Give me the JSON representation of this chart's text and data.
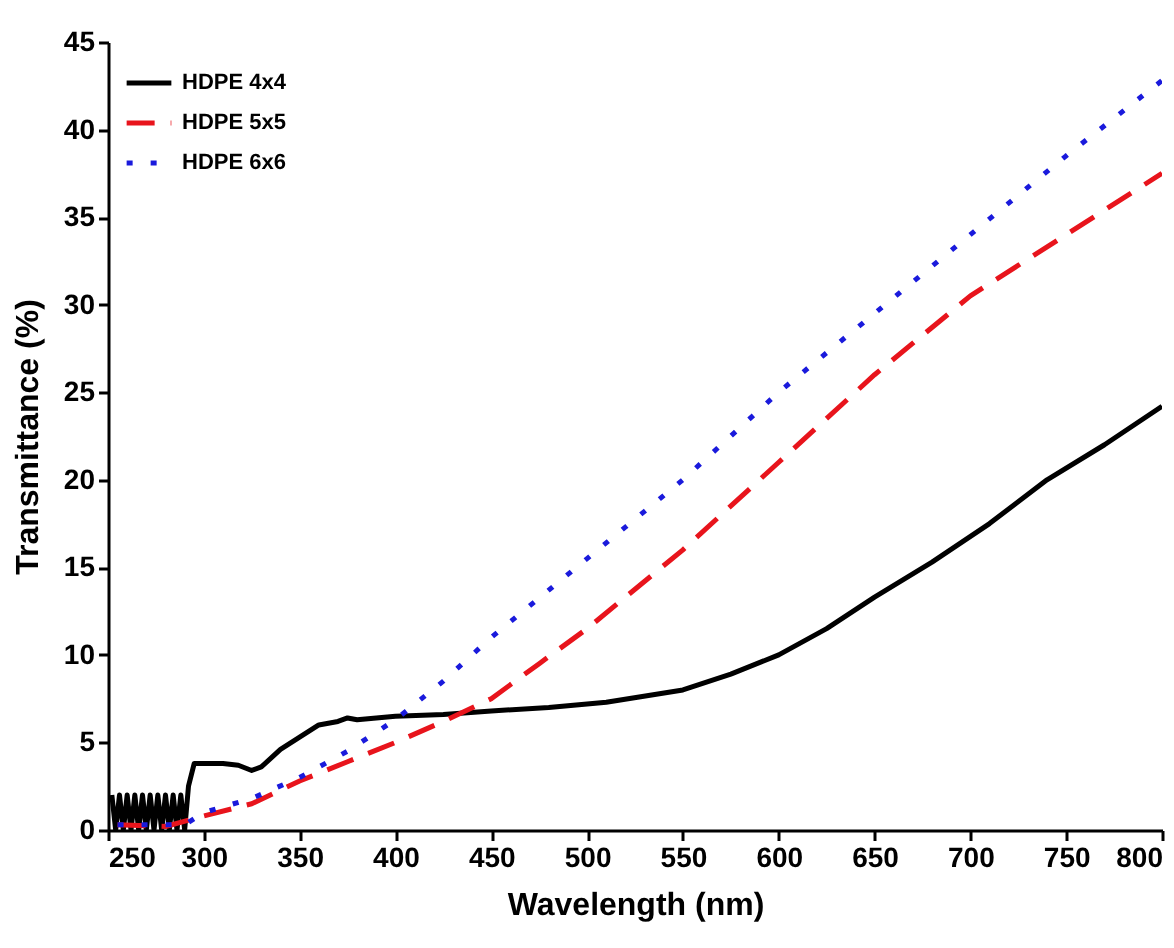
{
  "chart_data": {
    "type": "line",
    "xlabel": "Wavelength (nm)",
    "ylabel": "Transmittance (%)",
    "xlim": [
      250,
      800
    ],
    "ylim": [
      0,
      45
    ],
    "xticks": [
      250,
      300,
      350,
      400,
      450,
      500,
      550,
      600,
      650,
      700,
      750,
      800
    ],
    "yticks": [
      0,
      5,
      10,
      15,
      20,
      25,
      30,
      35,
      40,
      45
    ],
    "grid": false,
    "legend": "top left",
    "series": [
      {
        "name": "HDPE 4x4",
        "color": "#000000",
        "line_style": "solid",
        "x": [
          252,
          254,
          256,
          258,
          260,
          262,
          264,
          266,
          268,
          270,
          272,
          274,
          276,
          278,
          280,
          282,
          284,
          286,
          288,
          290,
          292,
          295,
          300,
          310,
          318,
          325,
          330,
          340,
          350,
          360,
          370,
          375,
          380,
          400,
          425,
          450,
          480,
          510,
          550,
          575,
          600,
          625,
          650,
          680,
          710,
          740,
          770,
          800
        ],
        "values": [
          2,
          0,
          2,
          0,
          2,
          0,
          2,
          0,
          2,
          0,
          2,
          0,
          2,
          0,
          2,
          0,
          2,
          0,
          2,
          0,
          2.5,
          3.8,
          3.8,
          3.8,
          3.7,
          3.4,
          3.6,
          4.6,
          5.3,
          6,
          6.2,
          6.4,
          6.3,
          6.5,
          6.6,
          6.8,
          7,
          7.3,
          8,
          8.9,
          10,
          11.5,
          13.3,
          15.3,
          17.5,
          20,
          22,
          24.2
        ]
      },
      {
        "name": "HDPE 5x5",
        "color": "#e8141c",
        "line_style": "dashed",
        "x": [
          255,
          280,
          300,
          325,
          350,
          375,
          400,
          425,
          450,
          475,
          500,
          550,
          600,
          650,
          700,
          750,
          800
        ],
        "values": [
          0.3,
          0.2,
          0.8,
          1.5,
          2.8,
          3.9,
          5,
          6.2,
          7.5,
          9.5,
          11.5,
          16,
          21,
          26,
          30.5,
          34,
          37.5
        ]
      },
      {
        "name": "HDPE 6x6",
        "color": "#1a1adc",
        "line_style": "dotted",
        "x": [
          255,
          290,
          300,
          325,
          350,
          375,
          400,
          425,
          450,
          500,
          550,
          600,
          650,
          700,
          750,
          800
        ],
        "values": [
          0.3,
          0.3,
          1,
          1.8,
          3,
          4.5,
          6.3,
          8.5,
          11,
          15.5,
          20,
          25,
          29.5,
          34,
          38.5,
          42.8
        ]
      }
    ]
  }
}
